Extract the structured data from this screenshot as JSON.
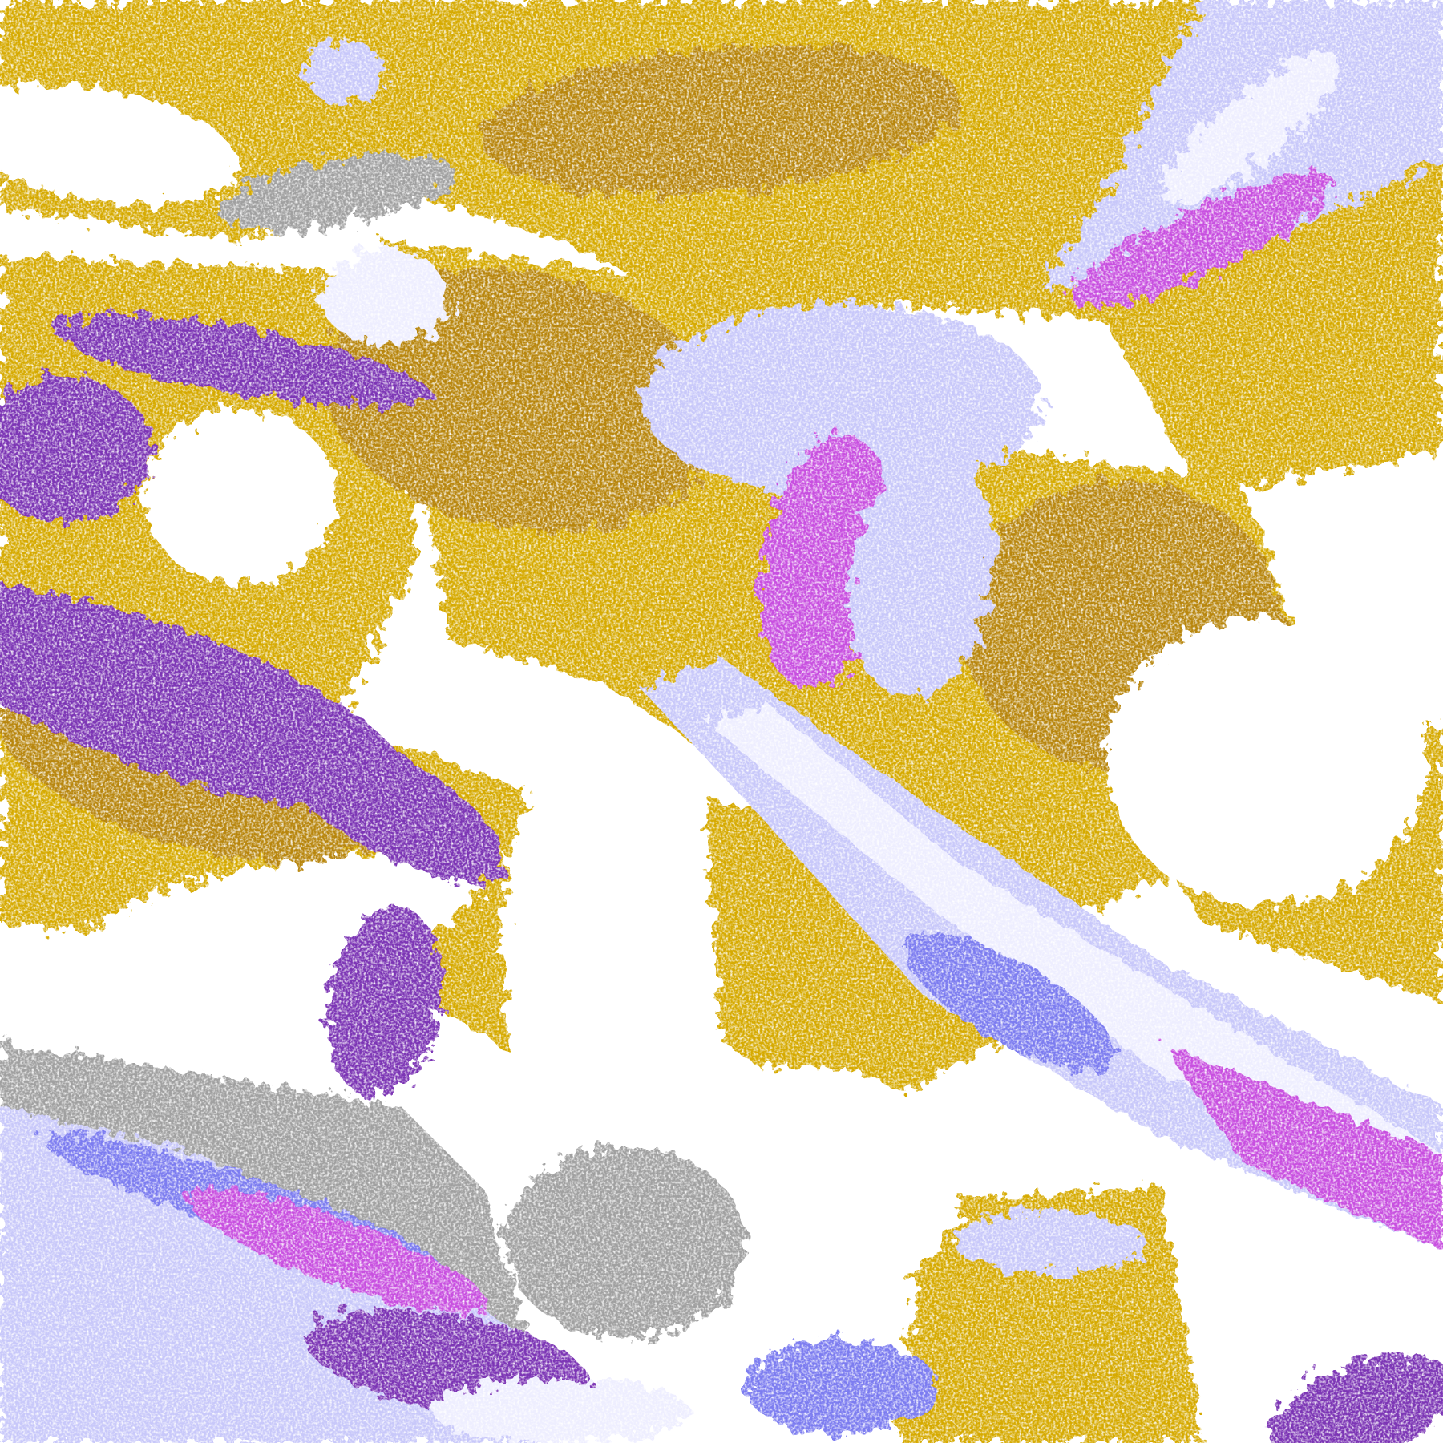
{
  "map": {
    "type": "classified-satellite-raster",
    "palette": {
      "gold": "#d6aa00",
      "dark_gold": "#b8860b",
      "purple": "#7b35b5",
      "magenta": "#c850e0",
      "blue": "#7c7cf0",
      "lavender": "#c8c8fa",
      "pale": "#eeeeff",
      "gray": "#a0a0a0",
      "background": "#ffffff"
    }
  }
}
